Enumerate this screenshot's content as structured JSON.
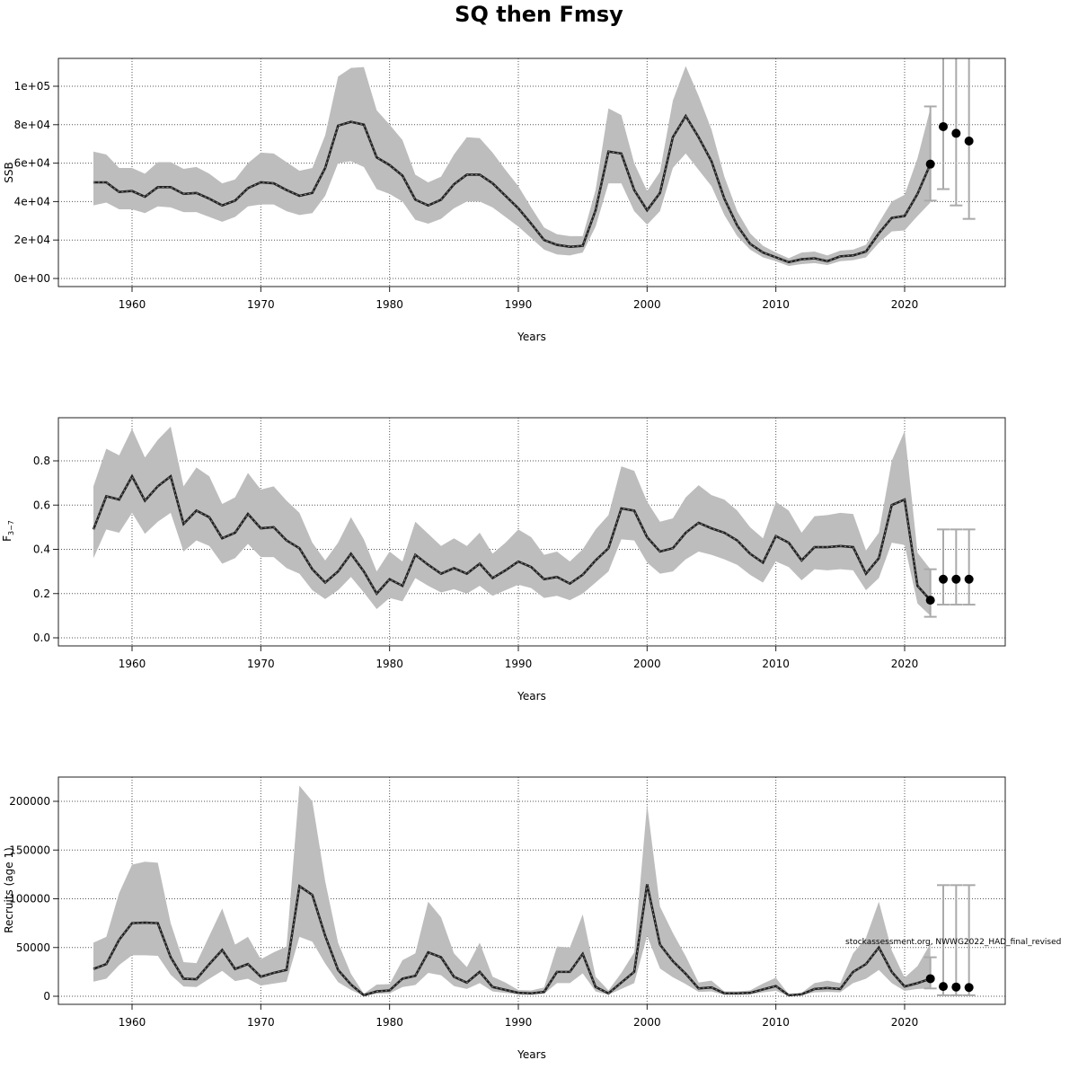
{
  "title": "SQ then Fmsy",
  "chart_data": [
    {
      "type": "line",
      "ylabel": "SSB",
      "xlabel": "Years",
      "xlim": [
        1957,
        2025
      ],
      "ylim": [
        0,
        110000
      ],
      "x_ticks": [
        1960,
        1970,
        1980,
        1990,
        2000,
        2010,
        2020
      ],
      "x_tick_labels": [
        "1960",
        "1970",
        "1980",
        "1990",
        "2000",
        "2010",
        "2020"
      ],
      "y_ticks": [
        0,
        20000,
        40000,
        60000,
        80000,
        100000
      ],
      "y_tick_labels": [
        "0e+00",
        "2e+04",
        "4e+04",
        "6e+04",
        "8e+04",
        "1e+05"
      ],
      "grid": true,
      "years": [
        1957,
        1958,
        1959,
        1960,
        1961,
        1962,
        1963,
        1964,
        1965,
        1966,
        1967,
        1968,
        1969,
        1970,
        1971,
        1972,
        1973,
        1974,
        1975,
        1976,
        1977,
        1978,
        1979,
        1980,
        1981,
        1982,
        1983,
        1984,
        1985,
        1986,
        1987,
        1988,
        1989,
        1990,
        1991,
        1992,
        1993,
        1994,
        1995,
        1996,
        1997,
        1998,
        1999,
        2000,
        2001,
        2002,
        2003,
        2004,
        2005,
        2006,
        2007,
        2008,
        2009,
        2010,
        2011,
        2012,
        2013,
        2014,
        2015,
        2016,
        2017,
        2018,
        2019,
        2020,
        2021,
        2022
      ],
      "estimate": [
        50000,
        50000,
        45000,
        45500,
        42500,
        47500,
        47500,
        44000,
        44500,
        41500,
        38000,
        40500,
        47000,
        50000,
        49500,
        46000,
        43000,
        44500,
        57500,
        79500,
        81500,
        80000,
        63000,
        59000,
        53500,
        41000,
        38000,
        41000,
        49000,
        54000,
        54000,
        49500,
        43000,
        36500,
        28500,
        20000,
        17500,
        16500,
        17000,
        35500,
        66000,
        65000,
        46000,
        35500,
        44500,
        73500,
        84500,
        73500,
        61000,
        41500,
        27500,
        18000,
        13500,
        11000,
        8500,
        10000,
        10500,
        9000,
        11500,
        12000,
        14000,
        23500,
        31500,
        32500,
        44000,
        59500
      ],
      "lower": [
        38000,
        39500,
        36000,
        36000,
        34000,
        37500,
        37000,
        34500,
        34500,
        32000,
        29500,
        32000,
        37500,
        38500,
        38500,
        35000,
        33000,
        34000,
        43000,
        60000,
        61000,
        58000,
        46500,
        44000,
        40000,
        30500,
        28500,
        31000,
        36500,
        40000,
        40000,
        37000,
        32000,
        27000,
        21000,
        15000,
        12500,
        12000,
        13500,
        27000,
        49500,
        49500,
        35000,
        28000,
        35000,
        57500,
        65000,
        56500,
        48000,
        33000,
        22000,
        15000,
        11000,
        9000,
        6500,
        7500,
        8000,
        7000,
        9000,
        9500,
        11000,
        18500,
        24500,
        25000,
        32500,
        39500
      ],
      "upper": [
        66000,
        64500,
        57500,
        57500,
        54500,
        60500,
        60500,
        57000,
        58000,
        54500,
        49500,
        51500,
        60000,
        65500,
        65000,
        60500,
        56000,
        57500,
        74500,
        105000,
        109500,
        110000,
        87500,
        80000,
        72000,
        54000,
        50000,
        53000,
        64500,
        73500,
        73000,
        65500,
        56500,
        48000,
        37000,
        26500,
        23000,
        22000,
        22000,
        46000,
        88500,
        85000,
        60000,
        45500,
        55500,
        92500,
        110500,
        95000,
        77500,
        53000,
        35000,
        23500,
        17000,
        13500,
        10500,
        13500,
        14000,
        12000,
        14500,
        15000,
        17500,
        29000,
        40000,
        43500,
        62500,
        88500
      ],
      "projection_years": [
        2022,
        2023,
        2024,
        2025
      ],
      "projection_median": [
        59500,
        79000,
        75500,
        71500
      ],
      "projection_lower": [
        40500,
        46500,
        38000,
        31000
      ],
      "projection_upper": [
        89500,
        116000,
        116000,
        116000
      ]
    },
    {
      "type": "line",
      "ylabel": "F",
      "ylabel_sub": "3−7",
      "xlabel": "Years",
      "xlim": [
        1957,
        2025
      ],
      "ylim": [
        0,
        0.95
      ],
      "x_ticks": [
        1960,
        1970,
        1980,
        1990,
        2000,
        2010,
        2020
      ],
      "x_tick_labels": [
        "1960",
        "1970",
        "1980",
        "1990",
        "2000",
        "2010",
        "2020"
      ],
      "y_ticks": [
        0,
        0.2,
        0.4,
        0.6,
        0.8
      ],
      "y_tick_labels": [
        "0.0",
        "0.2",
        "0.4",
        "0.6",
        "0.8"
      ],
      "grid": true,
      "years": [
        1957,
        1958,
        1959,
        1960,
        1961,
        1962,
        1963,
        1964,
        1965,
        1966,
        1967,
        1968,
        1969,
        1970,
        1971,
        1972,
        1973,
        1974,
        1975,
        1976,
        1977,
        1978,
        1979,
        1980,
        1981,
        1982,
        1983,
        1984,
        1985,
        1986,
        1987,
        1988,
        1989,
        1990,
        1991,
        1992,
        1993,
        1994,
        1995,
        1996,
        1997,
        1998,
        1999,
        2000,
        2001,
        2002,
        2003,
        2004,
        2005,
        2006,
        2007,
        2008,
        2009,
        2010,
        2011,
        2012,
        2013,
        2014,
        2015,
        2016,
        2017,
        2018,
        2019,
        2020,
        2021,
        2022
      ],
      "estimate": [
        0.49,
        0.64,
        0.625,
        0.73,
        0.62,
        0.685,
        0.73,
        0.515,
        0.575,
        0.545,
        0.45,
        0.475,
        0.56,
        0.495,
        0.5,
        0.44,
        0.405,
        0.31,
        0.25,
        0.3,
        0.38,
        0.3,
        0.2,
        0.265,
        0.235,
        0.375,
        0.33,
        0.29,
        0.315,
        0.29,
        0.335,
        0.27,
        0.305,
        0.345,
        0.32,
        0.265,
        0.275,
        0.245,
        0.285,
        0.35,
        0.405,
        0.585,
        0.575,
        0.455,
        0.39,
        0.405,
        0.475,
        0.52,
        0.495,
        0.475,
        0.44,
        0.38,
        0.34,
        0.46,
        0.43,
        0.35,
        0.41,
        0.41,
        0.415,
        0.41,
        0.29,
        0.36,
        0.6,
        0.625,
        0.235,
        0.17
      ],
      "lower": [
        0.36,
        0.49,
        0.475,
        0.565,
        0.47,
        0.525,
        0.565,
        0.39,
        0.44,
        0.415,
        0.335,
        0.36,
        0.425,
        0.365,
        0.365,
        0.315,
        0.29,
        0.215,
        0.175,
        0.215,
        0.275,
        0.205,
        0.13,
        0.18,
        0.165,
        0.27,
        0.235,
        0.205,
        0.22,
        0.2,
        0.235,
        0.19,
        0.215,
        0.24,
        0.225,
        0.18,
        0.19,
        0.17,
        0.2,
        0.25,
        0.3,
        0.445,
        0.44,
        0.34,
        0.29,
        0.3,
        0.355,
        0.39,
        0.375,
        0.355,
        0.33,
        0.285,
        0.25,
        0.345,
        0.32,
        0.26,
        0.31,
        0.305,
        0.31,
        0.305,
        0.215,
        0.27,
        0.43,
        0.42,
        0.155,
        0.1
      ],
      "upper": [
        0.685,
        0.855,
        0.825,
        0.945,
        0.815,
        0.895,
        0.955,
        0.685,
        0.77,
        0.73,
        0.605,
        0.635,
        0.745,
        0.67,
        0.685,
        0.62,
        0.565,
        0.43,
        0.35,
        0.43,
        0.545,
        0.445,
        0.3,
        0.39,
        0.345,
        0.525,
        0.47,
        0.415,
        0.45,
        0.415,
        0.475,
        0.38,
        0.43,
        0.49,
        0.455,
        0.375,
        0.39,
        0.345,
        0.4,
        0.49,
        0.555,
        0.775,
        0.755,
        0.615,
        0.525,
        0.54,
        0.635,
        0.69,
        0.645,
        0.625,
        0.575,
        0.5,
        0.45,
        0.615,
        0.575,
        0.475,
        0.55,
        0.555,
        0.565,
        0.56,
        0.395,
        0.475,
        0.8,
        0.935,
        0.385,
        0.31
      ],
      "projection_years": [
        2022,
        2023,
        2024,
        2025
      ],
      "projection_median": [
        0.17,
        0.265,
        0.265,
        0.265
      ],
      "projection_lower": [
        0.095,
        0.15,
        0.15,
        0.15
      ],
      "projection_upper": [
        0.31,
        0.49,
        0.49,
        0.49
      ]
    },
    {
      "type": "line",
      "ylabel": "Recruits (age 1)",
      "xlabel": "Years",
      "xlim": [
        1957,
        2025
      ],
      "ylim": [
        0,
        215000
      ],
      "x_ticks": [
        1960,
        1970,
        1980,
        1990,
        2000,
        2010,
        2020
      ],
      "x_tick_labels": [
        "1960",
        "1970",
        "1980",
        "1990",
        "2000",
        "2010",
        "2020"
      ],
      "y_ticks": [
        0,
        50000,
        100000,
        150000,
        200000
      ],
      "y_tick_labels": [
        "0",
        "50000",
        "100000",
        "150000",
        "200000"
      ],
      "grid": true,
      "years": [
        1957,
        1958,
        1959,
        1960,
        1961,
        1962,
        1963,
        1964,
        1965,
        1966,
        1967,
        1968,
        1969,
        1970,
        1971,
        1972,
        1973,
        1974,
        1975,
        1976,
        1977,
        1978,
        1979,
        1980,
        1981,
        1982,
        1983,
        1984,
        1985,
        1986,
        1987,
        1988,
        1989,
        1990,
        1991,
        1992,
        1993,
        1994,
        1995,
        1996,
        1997,
        1998,
        1999,
        2000,
        2001,
        2002,
        2003,
        2004,
        2005,
        2006,
        2007,
        2008,
        2009,
        2010,
        2011,
        2012,
        2013,
        2014,
        2015,
        2016,
        2017,
        2018,
        2019,
        2020,
        2021,
        2022
      ],
      "estimate": [
        28000,
        33000,
        58000,
        75000,
        75500,
        75000,
        40000,
        18000,
        17500,
        33000,
        47500,
        28000,
        33000,
        20000,
        24000,
        27000,
        113000,
        104000,
        62000,
        27000,
        12000,
        1000,
        5000,
        6000,
        18000,
        21000,
        45000,
        40000,
        20000,
        14000,
        25000,
        9500,
        6500,
        3500,
        3000,
        4500,
        25000,
        25000,
        43500,
        9500,
        3000,
        14000,
        25000,
        115000,
        53000,
        36000,
        23000,
        8000,
        9000,
        3000,
        3000,
        3500,
        7000,
        10500,
        1000,
        2000,
        7500,
        8500,
        7500,
        25000,
        33000,
        50000,
        25000,
        10000,
        13500,
        18000
      ],
      "lower": [
        15000,
        18000,
        32000,
        42000,
        42000,
        41500,
        22000,
        10000,
        9500,
        18000,
        26000,
        15500,
        18000,
        11000,
        13000,
        15000,
        61000,
        56000,
        33500,
        14500,
        6500,
        500,
        2500,
        3000,
        9500,
        11500,
        24000,
        21500,
        10500,
        7500,
        13500,
        5000,
        3500,
        2000,
        1500,
        2500,
        13500,
        13500,
        23500,
        5000,
        1500,
        7500,
        13500,
        62000,
        28500,
        19500,
        12500,
        4500,
        5000,
        1500,
        1500,
        2000,
        4000,
        5500,
        500,
        1000,
        4000,
        4500,
        4000,
        13500,
        18000,
        27000,
        13500,
        5500,
        7500,
        8000
      ],
      "upper": [
        55000,
        61000,
        106000,
        135000,
        138000,
        137000,
        75000,
        35000,
        34000,
        62000,
        90000,
        53000,
        61000,
        38000,
        45000,
        51000,
        216000,
        200000,
        118000,
        55000,
        23000,
        2500,
        12000,
        12500,
        37000,
        44000,
        97000,
        81000,
        44000,
        30000,
        55000,
        20000,
        14000,
        6500,
        6000,
        9000,
        51000,
        50000,
        84000,
        20000,
        6000,
        24000,
        45000,
        197000,
        92000,
        65000,
        41000,
        14000,
        16000,
        5000,
        5000,
        6000,
        13000,
        19000,
        2000,
        3500,
        13500,
        16000,
        13500,
        44000,
        60000,
        97000,
        47000,
        19000,
        31000,
        54000
      ],
      "projection_years": [
        2022,
        2023,
        2024,
        2025
      ],
      "projection_median": [
        18000,
        10000,
        9500,
        9000
      ],
      "projection_lower": [
        8000,
        1000,
        1000,
        1000
      ],
      "projection_upper": [
        40000,
        114000,
        114000,
        114000
      ],
      "annotation": "stockassessment.org, NWWG2022_HAD_final_revised"
    }
  ]
}
